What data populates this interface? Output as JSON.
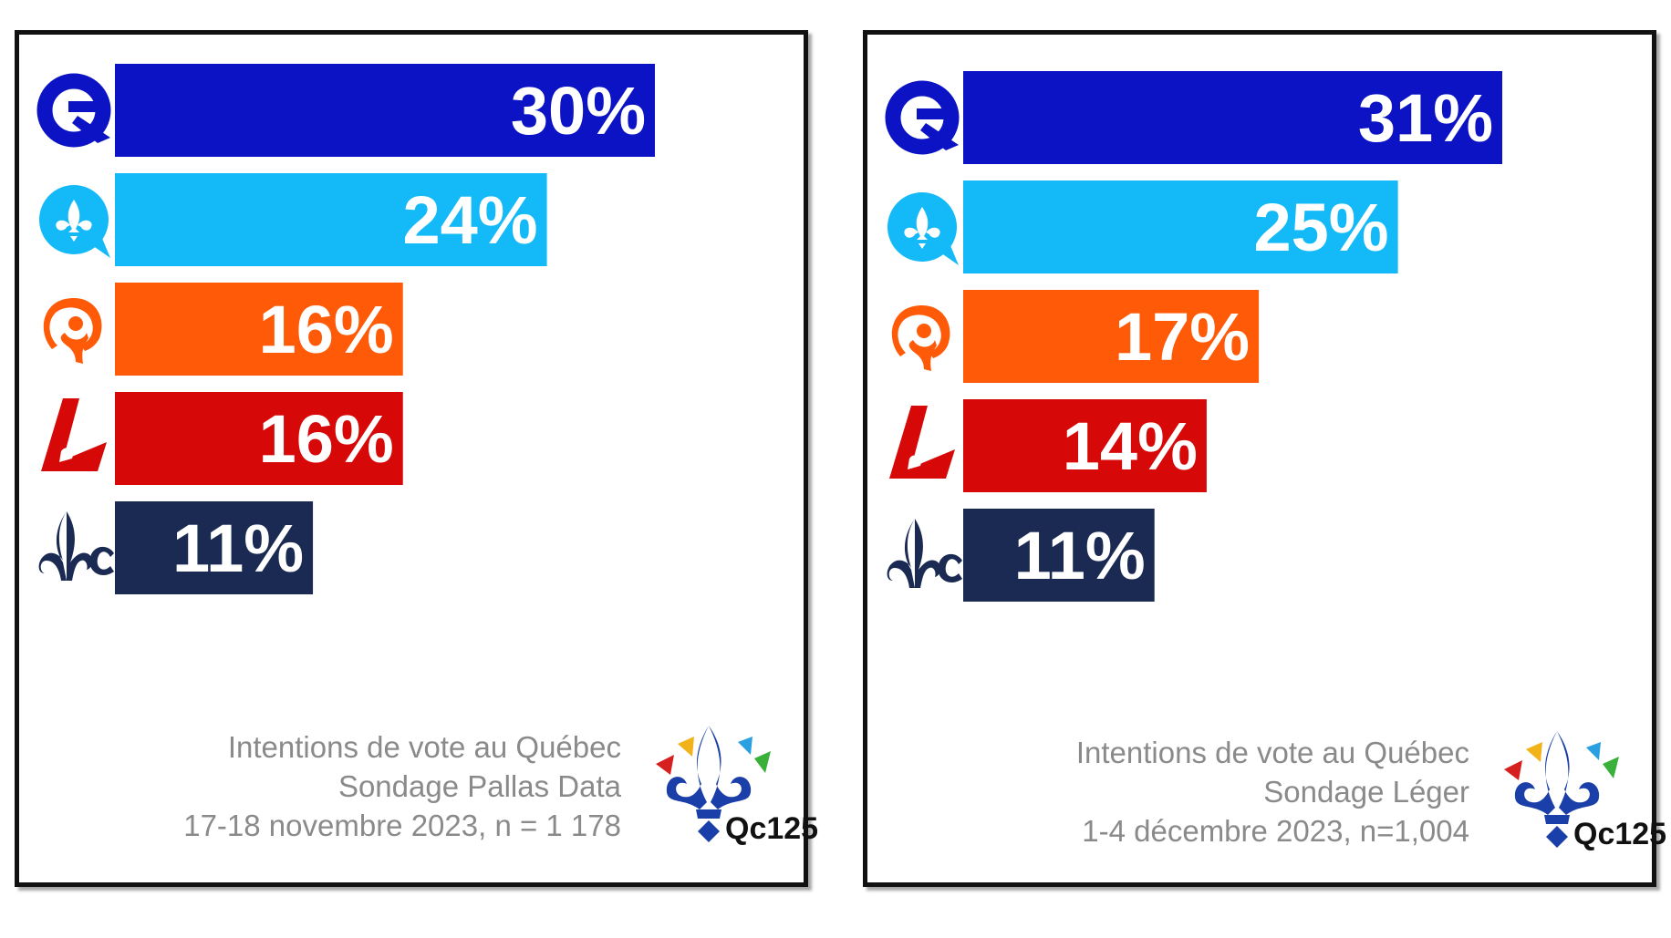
{
  "parties": [
    {
      "icon": "caq-q-icon",
      "color": "#0c13c4"
    },
    {
      "icon": "pq-fleur-de-lis-speech-bubble-icon",
      "color": "#14baf7"
    },
    {
      "icon": "qs-figure-icon",
      "color": "#ff5a07"
    },
    {
      "icon": "plq-l-icon",
      "color": "#d60808"
    },
    {
      "icon": "pcq-fleur-c-icon",
      "color": "#1a2a52"
    }
  ],
  "logo_text": "Qc125",
  "chart_data": [
    {
      "type": "bar",
      "orientation": "horizontal",
      "values": [
        30,
        24,
        16,
        16,
        11
      ],
      "data_labels": [
        "30%",
        "24%",
        "16%",
        "16%",
        "11%"
      ],
      "colors": [
        "#0c13c4",
        "#14baf7",
        "#ff5a07",
        "#d60808",
        "#1a2a52"
      ],
      "xlim": [
        0,
        30
      ],
      "grid": false,
      "caption": [
        "Intentions de vote au Québec",
        "Sondage Pallas Data",
        "17-18 novembre 2023, n = 1 178"
      ]
    },
    {
      "type": "bar",
      "orientation": "horizontal",
      "values": [
        31,
        25,
        17,
        14,
        11
      ],
      "data_labels": [
        "31%",
        "25%",
        "17%",
        "14%",
        "11%"
      ],
      "colors": [
        "#0c13c4",
        "#14baf7",
        "#ff5a07",
        "#d60808",
        "#1a2a52"
      ],
      "xlim": [
        0,
        31
      ],
      "grid": false,
      "caption": [
        "Intentions de vote au Québec",
        "Sondage Léger",
        "1-4 décembre 2023, n=1,004"
      ]
    }
  ]
}
